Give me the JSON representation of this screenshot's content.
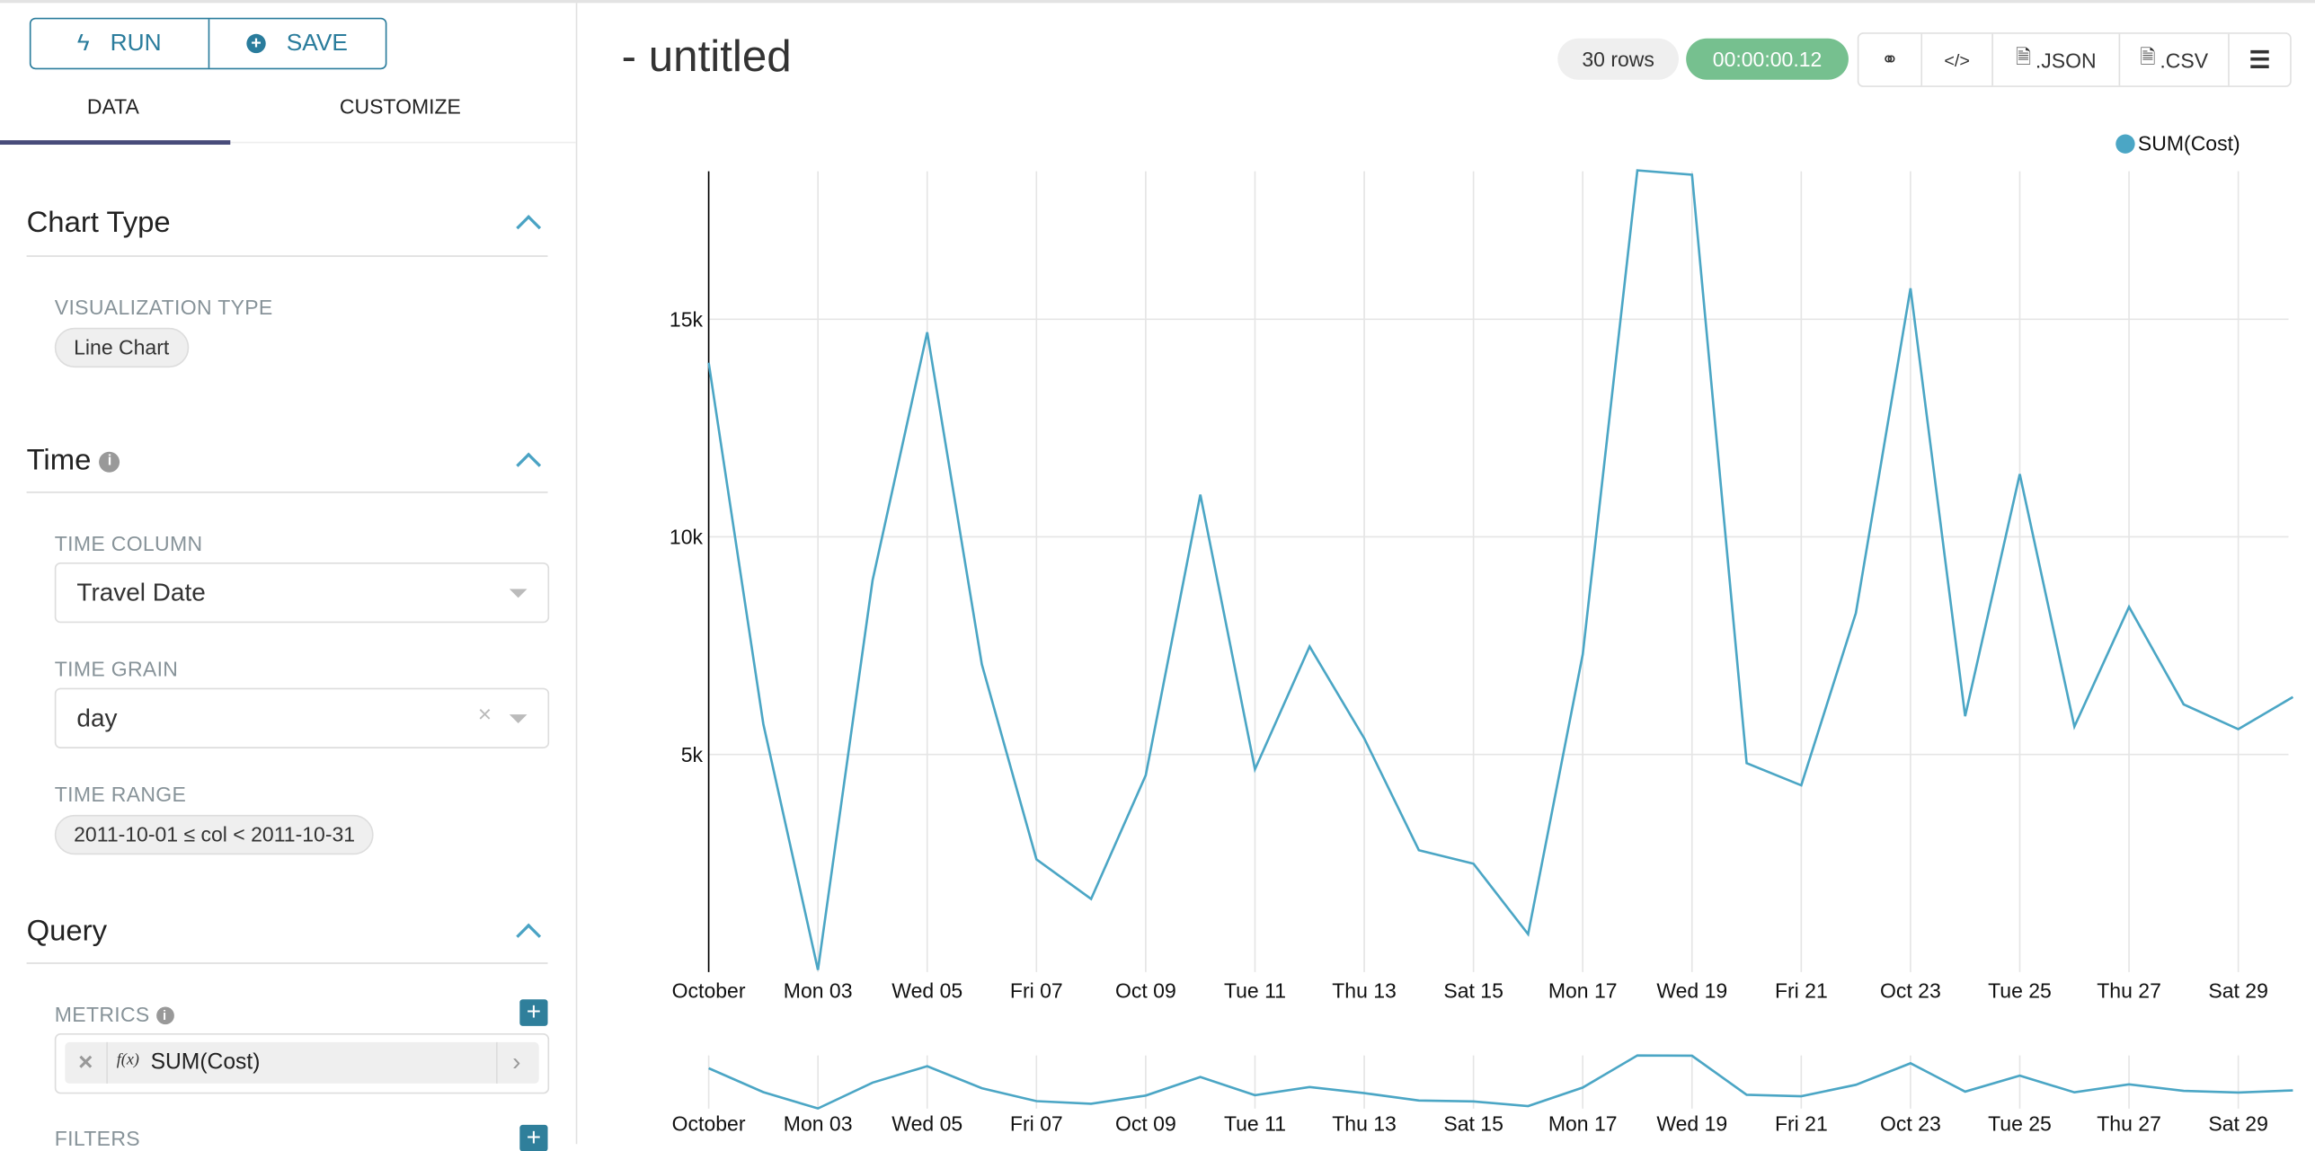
{
  "toolbar": {
    "run_label": "RUN",
    "save_label": "SAVE"
  },
  "tabs": [
    {
      "label": "DATA",
      "active": true
    },
    {
      "label": "CUSTOMIZE",
      "active": false
    }
  ],
  "sections": {
    "chart_type": {
      "title": "Chart Type",
      "viz_label": "VISUALIZATION TYPE",
      "viz_value": "Line Chart"
    },
    "time": {
      "title": "Time",
      "time_column_label": "TIME COLUMN",
      "time_column_value": "Travel Date",
      "time_grain_label": "TIME GRAIN",
      "time_grain_value": "day",
      "time_range_label": "TIME RANGE",
      "time_range_value": "2011-10-01 ≤ col < 2011-10-31"
    },
    "query": {
      "title": "Query",
      "metrics_label": "METRICS",
      "metric_fx": "f(x)",
      "metric_value": "SUM(Cost)",
      "filters_label": "FILTERS"
    }
  },
  "header": {
    "title": "- untitled",
    "rows": "30 rows",
    "duration": "00:00:00.12",
    "json_label": ".JSON",
    "csv_label": ".CSV"
  },
  "colors": {
    "accent": "#2a7c9c",
    "series": "#4ba6c5",
    "success": "#76c08f",
    "tab_active": "#484c7a"
  },
  "chart_data": {
    "type": "line",
    "legend": [
      "SUM(Cost)"
    ],
    "legend_position": "top-right",
    "grid": true,
    "x": [
      "2011-10-01",
      "2011-10-02",
      "2011-10-03",
      "2011-10-04",
      "2011-10-05",
      "2011-10-06",
      "2011-10-07",
      "2011-10-08",
      "2011-10-09",
      "2011-10-10",
      "2011-10-11",
      "2011-10-12",
      "2011-10-13",
      "2011-10-14",
      "2011-10-15",
      "2011-10-16",
      "2011-10-17",
      "2011-10-18",
      "2011-10-19",
      "2011-10-20",
      "2011-10-21",
      "2011-10-22",
      "2011-10-23",
      "2011-10-24",
      "2011-10-25",
      "2011-10-26",
      "2011-10-27",
      "2011-10-28",
      "2011-10-29",
      "2011-10-30"
    ],
    "series": [
      {
        "name": "SUM(Cost)",
        "values": [
          14000,
          5700,
          50,
          9000,
          14700,
          7070,
          2590,
          1680,
          4520,
          10970,
          4660,
          7480,
          5370,
          2800,
          2490,
          870,
          7300,
          18420,
          18320,
          4800,
          4290,
          8250,
          15710,
          5880,
          11440,
          5640,
          8390,
          6150,
          5580,
          6320
        ]
      }
    ],
    "x_tick_labels": [
      "October",
      "Mon 03",
      "Wed 05",
      "Fri 07",
      "Oct 09",
      "Tue 11",
      "Thu 13",
      "Sat 15",
      "Mon 17",
      "Wed 19",
      "Fri 21",
      "Oct 23",
      "Tue 25",
      "Thu 27",
      "Sat 29"
    ],
    "y_ticks": [
      5000,
      10000,
      15000
    ],
    "y_tick_labels": [
      "5k",
      "10k",
      "15k"
    ],
    "ylim": [
      0,
      18400
    ]
  }
}
